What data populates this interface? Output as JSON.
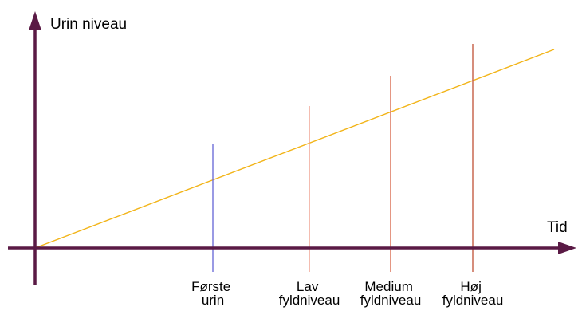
{
  "colors": {
    "axis": "#5a1a45",
    "trend_line": "#f2b418",
    "marker_first": "#6f6fd8",
    "marker_low": "#f0a08f",
    "marker_medium": "#d96a4e",
    "marker_high": "#c45d45"
  },
  "axes": {
    "y_label": "Urin niveau",
    "x_label": "Tid"
  },
  "markers": [
    {
      "label_line1": "Første",
      "label_line2": "urin"
    },
    {
      "label_line1": "Lav",
      "label_line2": "fyldniveau"
    },
    {
      "label_line1": "Medium",
      "label_line2": "fyldniveau"
    },
    {
      "label_line1": "Høj",
      "label_line2": "fyldniveau"
    }
  ]
}
